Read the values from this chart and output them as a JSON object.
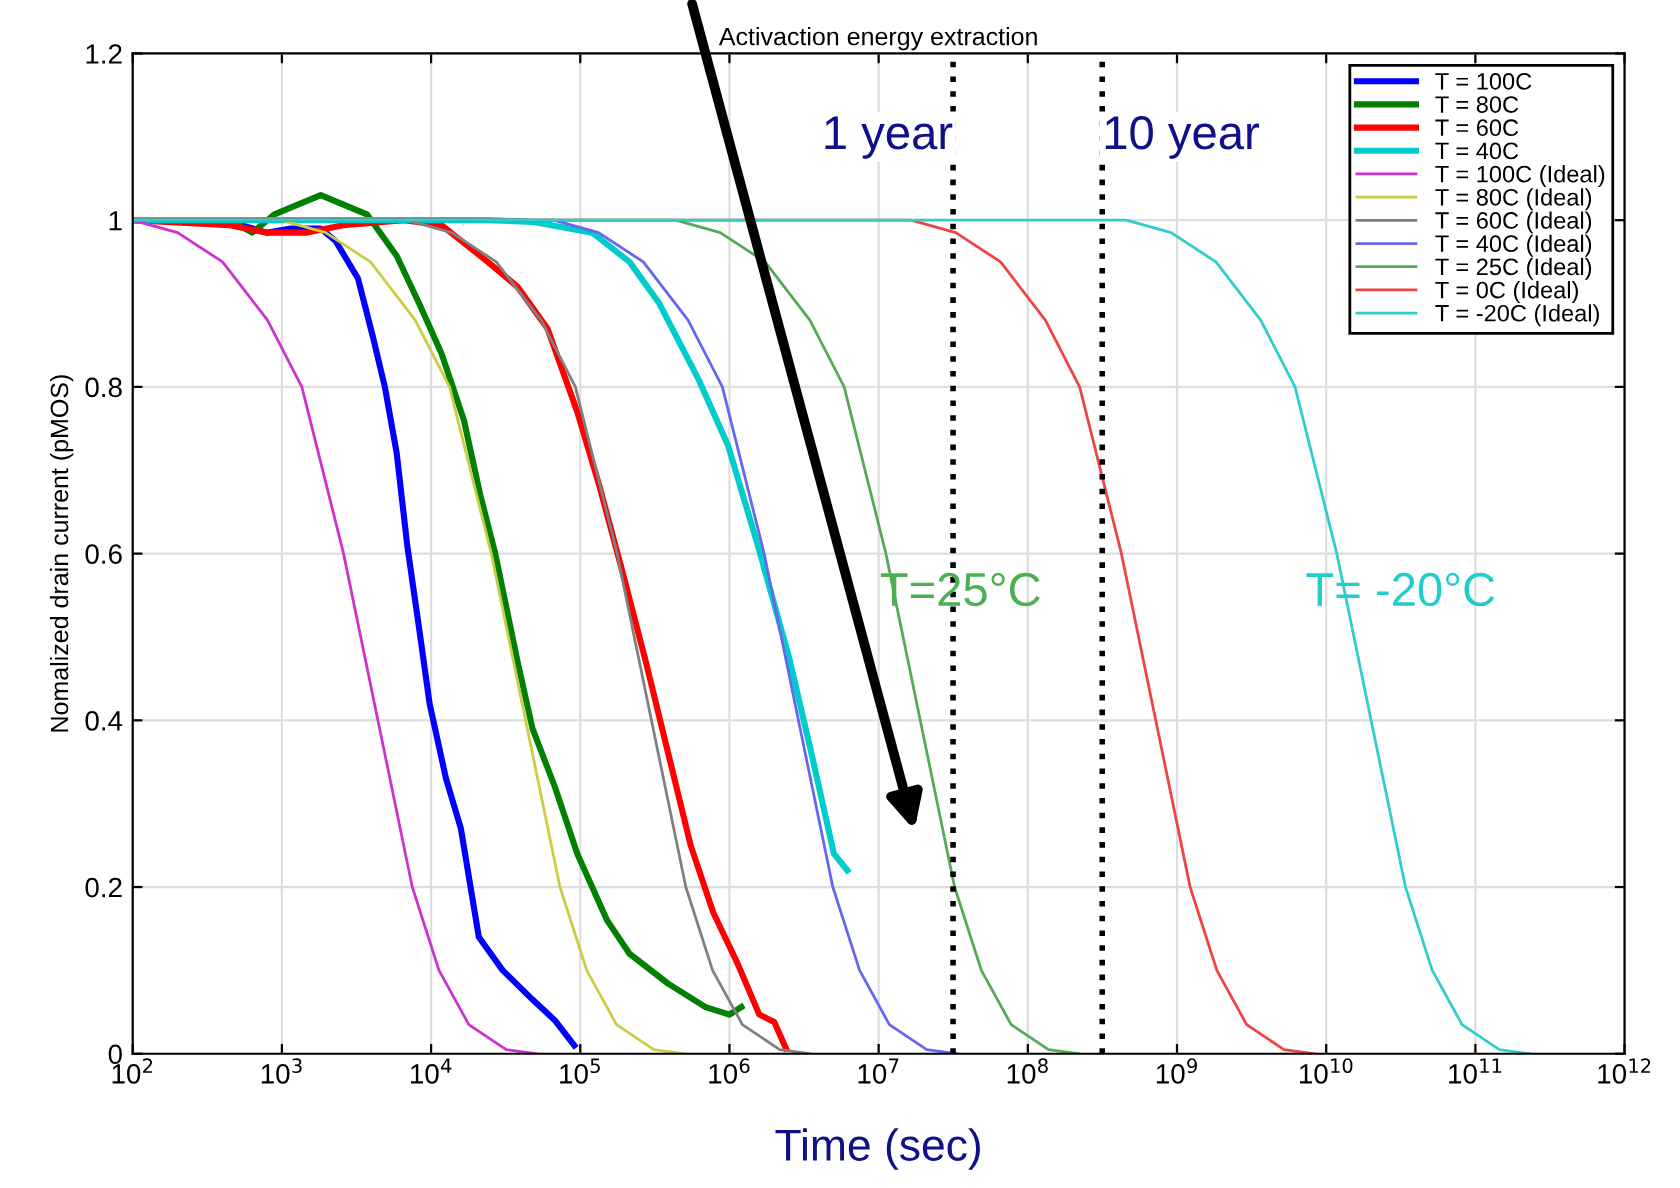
{
  "chart_data": {
    "type": "line",
    "title": "Activaction energy extraction",
    "xlabel": "Time (sec)",
    "ylabel": "Nomalized drain current (pMOS)",
    "log": "x",
    "grid": true,
    "legend": "top right",
    "line_style": "solid",
    "marker": "none",
    "xlim": [
      100,
      1000000000000
    ],
    "ylim": [
      0,
      1.2
    ],
    "xticks": [
      {
        "value": 100,
        "label": "10$^{2}$"
      },
      {
        "value": 1000,
        "label": "10$^{3}$"
      },
      {
        "value": 10000,
        "label": "10$^{4}$"
      },
      {
        "value": 100000,
        "label": "10$^{5}$"
      },
      {
        "value": 1000000,
        "label": "10$^{6}$"
      },
      {
        "value": 10000000,
        "label": "10$^{7}$"
      },
      {
        "value": 100000000,
        "label": "10$^{8}$"
      },
      {
        "value": 1000000000,
        "label": "10$^{9}$"
      },
      {
        "value": 10000000000,
        "label": "10$^{10}$"
      },
      {
        "value": 100000000000,
        "label": "10$^{11}$"
      },
      {
        "value": 1000000000000,
        "label": "10$^{12}$"
      }
    ],
    "yticks": [
      0,
      0.2,
      0.4,
      0.6,
      0.8,
      1,
      1.2
    ],
    "series": [
      {
        "name": "T = 100C",
        "color": "#0000ff",
        "x": [
          100,
          138,
          447,
          794,
          1148,
          1820,
          2291,
          3236,
          4074,
          4898,
          5888,
          6918,
          8318,
          9772,
          12590,
          15850,
          20890,
          30200,
          47860,
          67610,
          91200
        ],
        "values": [
          1,
          1,
          0.998,
          0.985,
          0.99,
          0.99,
          0.975,
          0.93,
          0.86,
          0.8,
          0.72,
          0.61,
          0.51,
          0.42,
          0.33,
          0.27,
          0.14,
          0.1,
          0.065,
          0.04,
          0.01
        ]
      },
      {
        "name": "T = 80C",
        "color": "#008000",
        "x": [
          100,
          447,
          631,
          891,
          1820,
          3715,
          5888,
          8318,
          11750,
          16600,
          21380,
          26920,
          38020,
          47860,
          67610,
          95500,
          151400,
          213800,
          389000,
          691800,
          1000000,
          1202000
        ],
        "values": [
          1,
          1,
          0.985,
          1.007,
          1.03,
          1.007,
          0.957,
          0.9,
          0.84,
          0.76,
          0.67,
          0.6,
          0.47,
          0.39,
          0.32,
          0.24,
          0.16,
          0.12,
          0.084,
          0.056,
          0.047,
          0.056
        ]
      },
      {
        "name": "T = 60C",
        "color": "#ff0000",
        "x": [
          100,
          447,
          794,
          1445,
          2570,
          6607,
          11750,
          23990,
          38020,
          60260,
          95500,
          134900,
          190500,
          275400,
          389000,
          549500,
          776200,
          1122000,
          1585000,
          1995000,
          2399000
        ],
        "values": [
          1,
          0.994,
          0.985,
          0.985,
          0.994,
          1,
          0.994,
          0.95,
          0.92,
          0.87,
          0.77,
          0.68,
          0.58,
          0.47,
          0.36,
          0.25,
          0.17,
          0.11,
          0.047,
          0.038,
          0.006
        ]
      },
      {
        "name": "T = 40C",
        "color": "#00cccc",
        "x": [
          100,
          4677,
          23990,
          47860,
          120200,
          213800,
          338800,
          616600,
          977200,
          1549000,
          2512000,
          3548000,
          5012000,
          6166000
        ],
        "values": [
          1,
          1,
          1,
          0.998,
          0.985,
          0.95,
          0.9,
          0.81,
          0.73,
          0.61,
          0.475,
          0.36,
          0.24,
          0.22
        ]
      },
      {
        "name": "T = 100C (Ideal)",
        "color": "#cc33cc",
        "x": [
          100,
          200,
          400,
          800,
          1360,
          2590,
          4400,
          7480,
          11300,
          17900,
          31900,
          50600
        ],
        "values": [
          1,
          0.985,
          0.95,
          0.88,
          0.8,
          0.6,
          0.4,
          0.2,
          0.1,
          0.035,
          0.005,
          0
        ]
      },
      {
        "name": "T = 80C (Ideal)",
        "color": "#cccc44",
        "x": [
          100,
          985,
          1965,
          3922,
          7826,
          13290,
          25330,
          43000,
          73100,
          110500,
          175000,
          311300,
          494500
        ],
        "values": [
          1,
          1,
          0.985,
          0.95,
          0.88,
          0.8,
          0.6,
          0.4,
          0.2,
          0.1,
          0.035,
          0.005,
          0
        ]
      },
      {
        "name": "T = 60C (Ideal)",
        "color": "#808080",
        "x": [
          100,
          6870,
          13710,
          27360,
          54600,
          92700,
          176700,
          300000,
          510000,
          771000,
          1221000,
          2172000,
          3450000
        ],
        "values": [
          1,
          1,
          0.985,
          0.95,
          0.88,
          0.8,
          0.6,
          0.4,
          0.2,
          0.1,
          0.035,
          0.005,
          0
        ]
      },
      {
        "name": "T = 40C (Ideal)",
        "color": "#6666ee",
        "x": [
          100,
          66410,
          132500,
          264500,
          527800,
          896100,
          1708000,
          2900000,
          4930000,
          7453000,
          11800000,
          21000000,
          33350000
        ],
        "values": [
          1,
          1,
          0.985,
          0.95,
          0.88,
          0.8,
          0.6,
          0.4,
          0.2,
          0.1,
          0.035,
          0.005,
          0
        ]
      },
      {
        "name": "T = 25C (Ideal)",
        "color": "#55aa55",
        "x": [
          100,
          435100,
          868300,
          1733000,
          3458000,
          5871000,
          11190000,
          19000000,
          32300000,
          48830000,
          77330000,
          137600000,
          218500000
        ],
        "values": [
          1,
          1,
          0.985,
          0.95,
          0.88,
          0.8,
          0.6,
          0.4,
          0.2,
          0.1,
          0.035,
          0.005,
          0
        ]
      },
      {
        "name": "T = 0C (Ideal)",
        "color": "#ee4444",
        "x": [
          100,
          16490000,
          32900000,
          65660000,
          131000000,
          222500000,
          424100000,
          720000000,
          1224000000,
          1850000000,
          2930000000,
          5213000000,
          8280000000
        ],
        "values": [
          1,
          1,
          0.985,
          0.95,
          0.88,
          0.8,
          0.6,
          0.4,
          0.2,
          0.1,
          0.035,
          0.005,
          0
        ]
      },
      {
        "name": "T = -20C (Ideal)",
        "color": "#33cccc",
        "x": [
          100,
          458000000,
          914000000,
          1824000000,
          3640000000,
          6180000000,
          11780000000,
          20000000000,
          34000000000,
          51400000000,
          81400000000,
          144800000000,
          230000000000
        ],
        "values": [
          1,
          1,
          0.985,
          0.95,
          0.88,
          0.8,
          0.6,
          0.4,
          0.2,
          0.1,
          0.035,
          0.005,
          0
        ]
      }
    ],
    "ref_lines": [
      {
        "axis": "x",
        "value": 31536000,
        "label": "1 year",
        "color": "#000000",
        "line_style": "dotted"
      },
      {
        "axis": "x",
        "value": 315360000,
        "label": "10 year",
        "color": "#000000",
        "line_style": "dotted"
      }
    ],
    "annotations": [
      "T=25°C",
      "T= -20°C"
    ]
  }
}
